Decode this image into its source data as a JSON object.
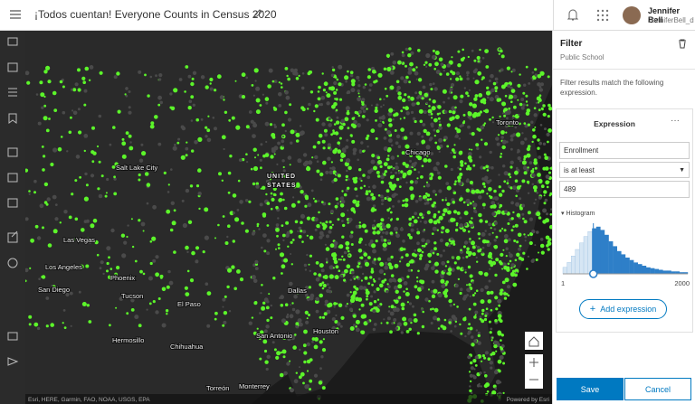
{
  "header": {
    "title": "¡Todos cuentan! Everyone Counts in Census 2020",
    "user_name": "Jennifer Bell",
    "user_id": "JenniferBell_d"
  },
  "map": {
    "labels": [
      "Toronto",
      "Chicago",
      "UNITED",
      "STATES",
      "Salt Lake City",
      "Las Vegas",
      "Los Angeles",
      "San Diego",
      "Phoenix",
      "Tucson",
      "El Paso",
      "Dallas",
      "Houston",
      "San Antonio",
      "Hermosillo",
      "Chihuahua",
      "Torreón",
      "Monterrey"
    ],
    "attribution": "Esri, HERE, Garmin, FAO, NOAA, USGS, EPA",
    "powered_by": "Powered by Esri"
  },
  "panel": {
    "title": "Filter",
    "subtitle": "Public School",
    "description": "Filter results match the following expression.",
    "expression": {
      "title": "Expression",
      "field": "Enrollment",
      "operator": "is at least",
      "value": 489,
      "histogram": {
        "label": "Histogram",
        "min": 1,
        "max": 2000,
        "counts": [
          8,
          14,
          22,
          30,
          38,
          46,
          52,
          56,
          58,
          54,
          48,
          40,
          34,
          28,
          24,
          20,
          17,
          14,
          12,
          10,
          8,
          7,
          6,
          5,
          4,
          4,
          3,
          3,
          2,
          2
        ]
      }
    },
    "add_button": "Add expression",
    "save": "Save",
    "cancel": "Cancel"
  }
}
